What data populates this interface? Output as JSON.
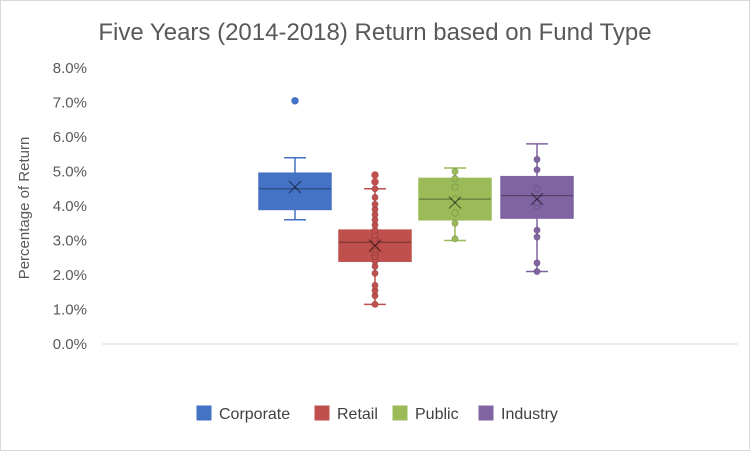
{
  "chart_data": {
    "type": "box",
    "title": "Five Years (2014-2018) Return based on Fund Type",
    "ylabel": "Percentage of Return",
    "xlabel": "",
    "ylim": [
      0,
      8
    ],
    "y_ticks": [
      "0.0%",
      "1.0%",
      "2.0%",
      "3.0%",
      "4.0%",
      "5.0%",
      "6.0%",
      "7.0%",
      "8.0%"
    ],
    "grid": false,
    "legend_position": "bottom",
    "series": [
      {
        "name": "Corporate",
        "color": "#4472C4",
        "min": 3.6,
        "q1": 3.9,
        "median": 4.5,
        "q3": 4.95,
        "max": 5.4,
        "mean": 4.55,
        "points": [
          7.05
        ]
      },
      {
        "name": "Retail",
        "color": "#C0504D",
        "min": 1.15,
        "q1": 2.4,
        "median": 2.95,
        "q3": 3.3,
        "max": 4.5,
        "mean": 2.85,
        "points": [
          1.15,
          1.4,
          1.55,
          1.7,
          2.05,
          2.25,
          2.4,
          2.55,
          2.65,
          2.75,
          2.85,
          2.95,
          3.05,
          3.15,
          3.3,
          3.45,
          3.6,
          3.75,
          3.9,
          4.05,
          4.25,
          4.5,
          4.7,
          4.9
        ]
      },
      {
        "name": "Public",
        "color": "#9BBB59",
        "min": 3.0,
        "q1": 3.6,
        "median": 4.2,
        "q3": 4.8,
        "max": 5.1,
        "mean": 4.1,
        "points": [
          3.05,
          3.5,
          3.8,
          4.2,
          4.55,
          4.8,
          5.0
        ]
      },
      {
        "name": "Industry",
        "color": "#8064A2",
        "min": 2.1,
        "q1": 3.65,
        "median": 4.3,
        "q3": 4.85,
        "max": 5.8,
        "mean": 4.2,
        "points": [
          2.1,
          2.35,
          3.1,
          3.3,
          4.0,
          4.1,
          4.5,
          5.05,
          5.35
        ]
      }
    ]
  }
}
